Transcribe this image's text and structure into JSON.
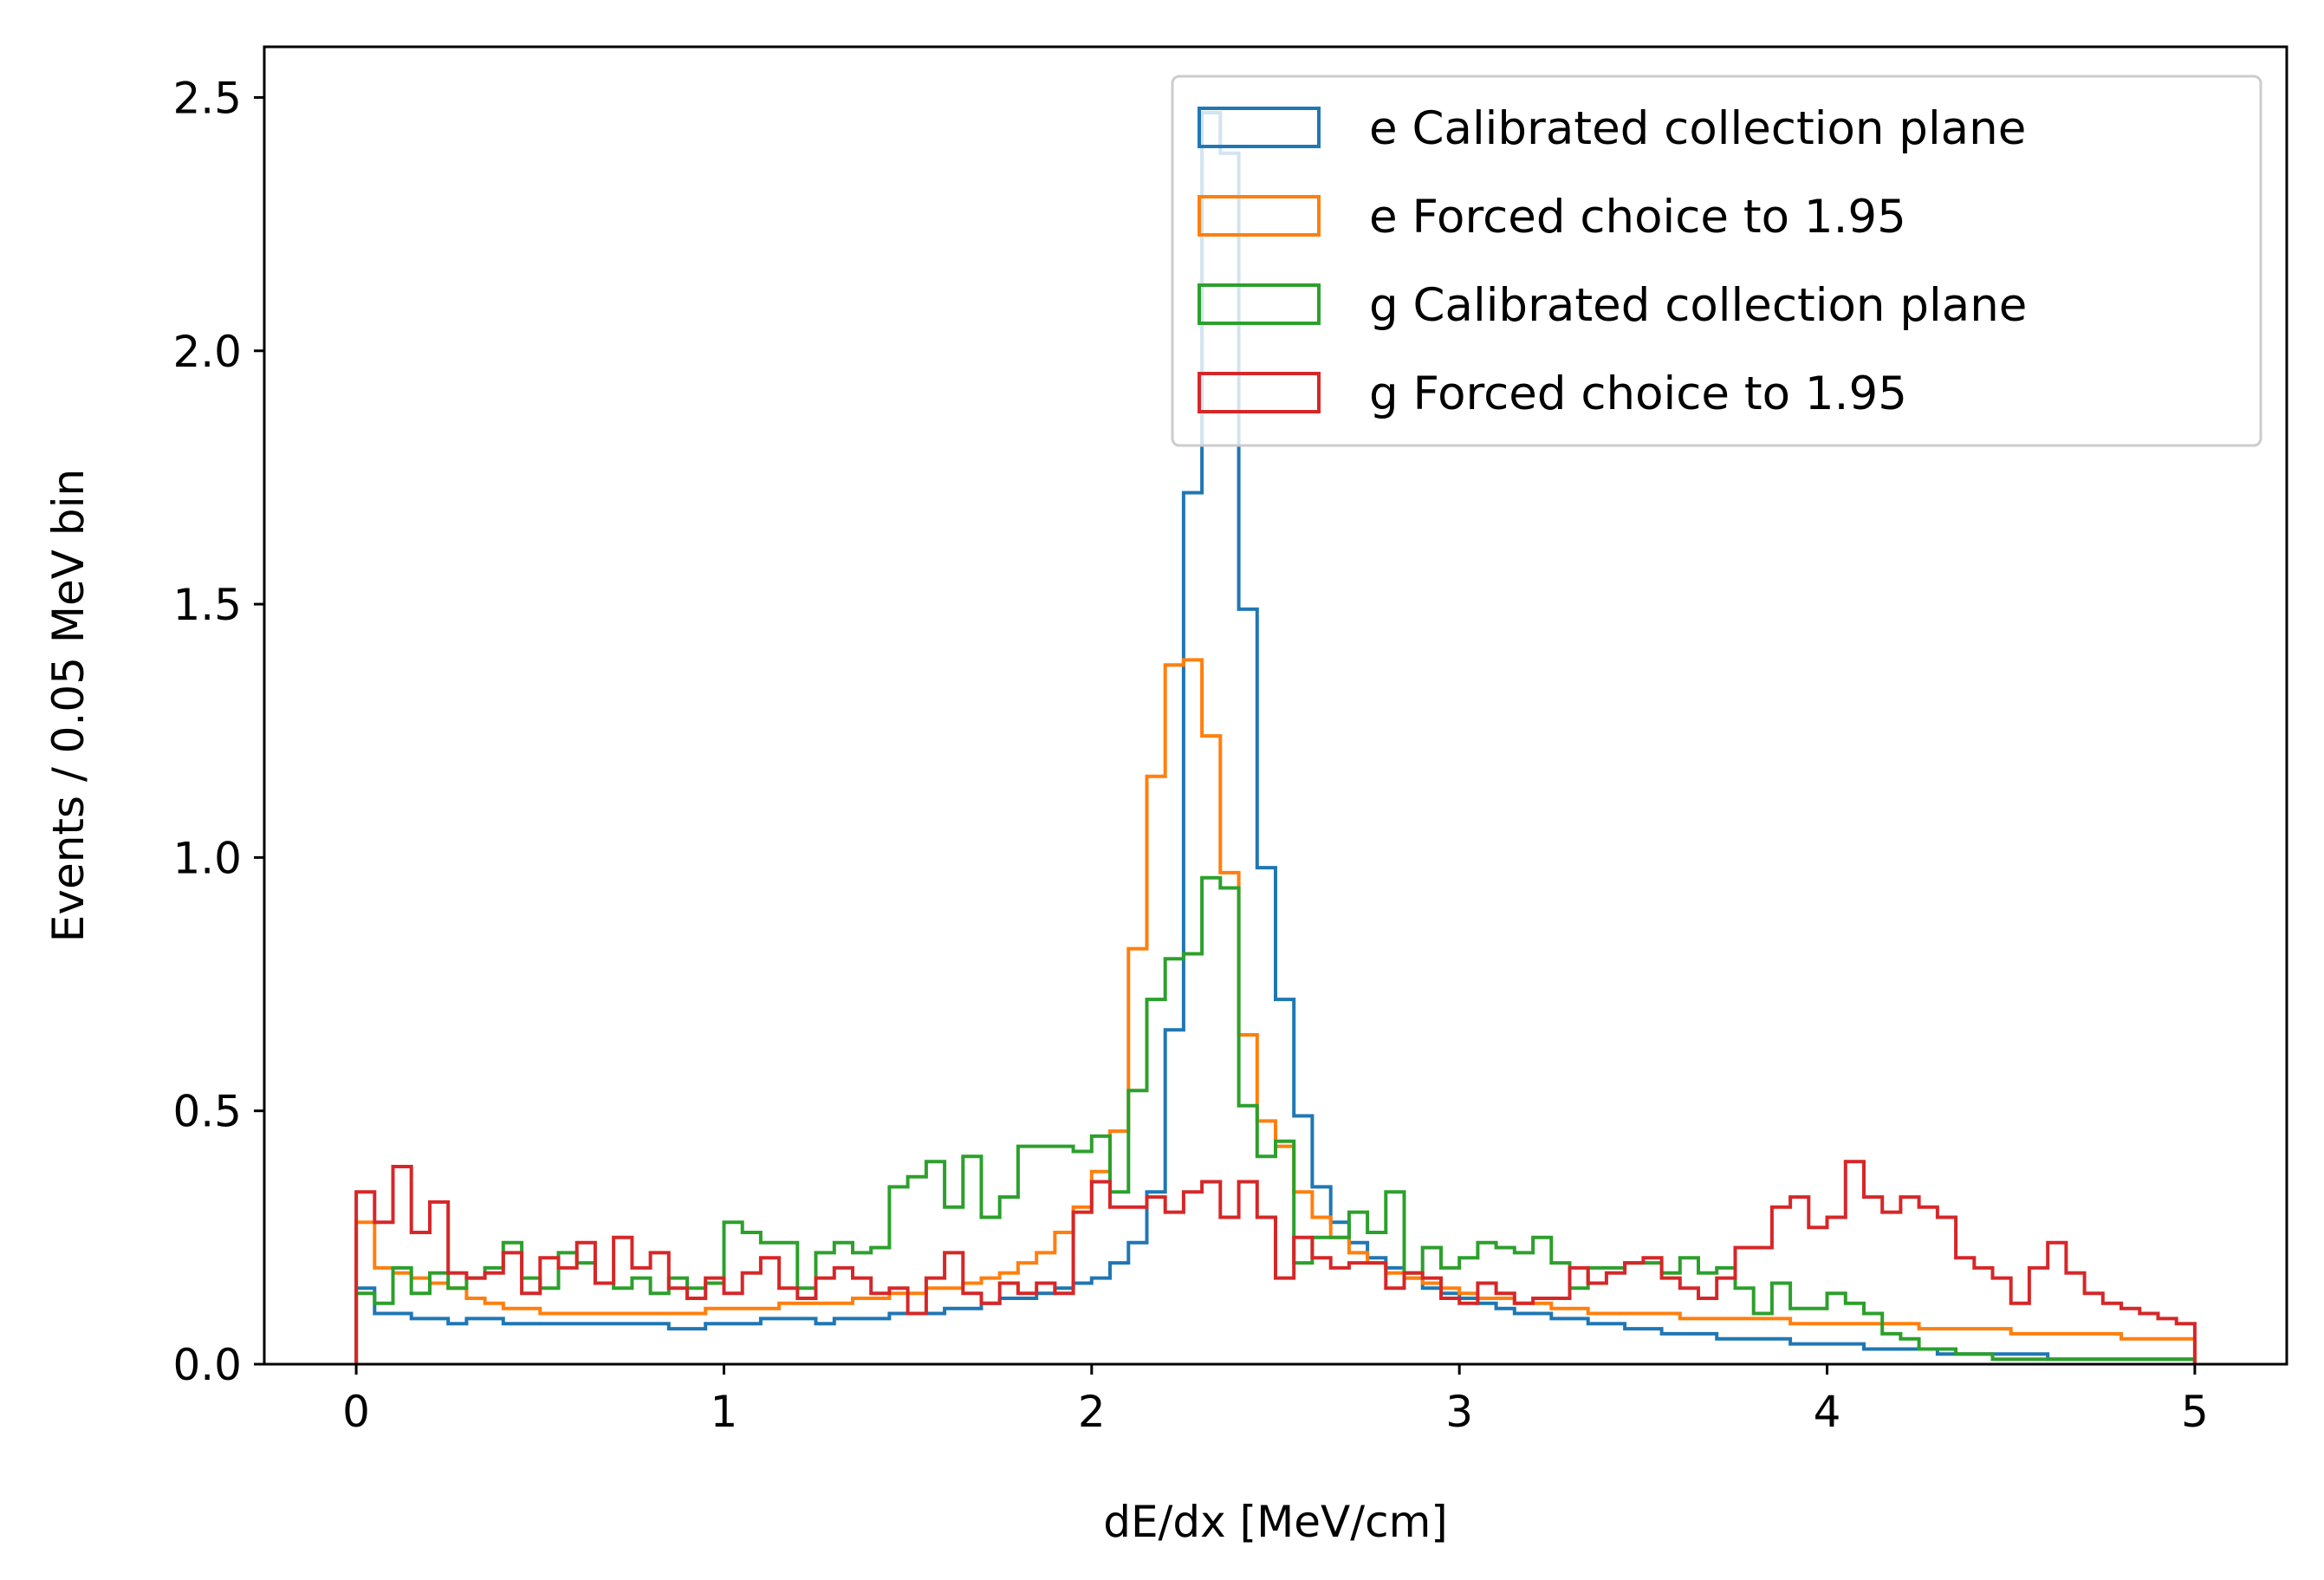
{
  "chart_data": {
    "type": "histogram-step",
    "xlabel": "dE/dx [MeV/cm]",
    "ylabel": "Events / 0.05 MeV bin",
    "xlim": [
      -0.25,
      5.25
    ],
    "ylim": [
      0,
      2.6
    ],
    "xticks": [
      0,
      1,
      2,
      3,
      4,
      5
    ],
    "xtick_labels": [
      "0",
      "1",
      "2",
      "3",
      "4",
      "5"
    ],
    "yticks": [
      0,
      0.5,
      1.0,
      1.5,
      2.0,
      2.5
    ],
    "ytick_labels": [
      "0.0",
      "0.5",
      "1.0",
      "1.5",
      "2.0",
      "2.5"
    ],
    "bin_start": 0,
    "bin_width": 0.05,
    "grid": false,
    "legend_position": "top-right",
    "series": [
      {
        "name": "e Calibrated collection plane",
        "color": "#1f77b4",
        "values": [
          0.15,
          0.1,
          0.1,
          0.09,
          0.09,
          0.08,
          0.09,
          0.09,
          0.08,
          0.08,
          0.08,
          0.08,
          0.08,
          0.08,
          0.08,
          0.08,
          0.08,
          0.07,
          0.07,
          0.08,
          0.08,
          0.08,
          0.09,
          0.09,
          0.09,
          0.08,
          0.09,
          0.09,
          0.09,
          0.1,
          0.1,
          0.1,
          0.11,
          0.11,
          0.12,
          0.13,
          0.13,
          0.14,
          0.15,
          0.16,
          0.17,
          0.2,
          0.24,
          0.34,
          0.66,
          1.72,
          2.47,
          2.39,
          1.49,
          0.98,
          0.72,
          0.49,
          0.35,
          0.28,
          0.24,
          0.21,
          0.19,
          0.17,
          0.15,
          0.14,
          0.13,
          0.12,
          0.11,
          0.1,
          0.1,
          0.09,
          0.09,
          0.08,
          0.08,
          0.07,
          0.07,
          0.06,
          0.06,
          0.06,
          0.05,
          0.05,
          0.05,
          0.05,
          0.04,
          0.04,
          0.04,
          0.04,
          0.03,
          0.03,
          0.03,
          0.03,
          0.02,
          0.02,
          0.02,
          0.02,
          0.02,
          0.02,
          0.01,
          0.01,
          0.01,
          0.01,
          0.01,
          0.01,
          0.01,
          0.01
        ]
      },
      {
        "name": "e Forced choice to 1.95",
        "color": "#ff7f0e",
        "values": [
          0.28,
          0.19,
          0.18,
          0.17,
          0.16,
          0.15,
          0.13,
          0.12,
          0.11,
          0.11,
          0.1,
          0.1,
          0.1,
          0.1,
          0.1,
          0.1,
          0.1,
          0.1,
          0.1,
          0.11,
          0.11,
          0.11,
          0.11,
          0.12,
          0.12,
          0.12,
          0.12,
          0.13,
          0.13,
          0.14,
          0.14,
          0.15,
          0.15,
          0.16,
          0.17,
          0.18,
          0.2,
          0.22,
          0.26,
          0.31,
          0.38,
          0.46,
          0.82,
          1.16,
          1.38,
          1.39,
          1.24,
          0.97,
          0.65,
          0.48,
          0.43,
          0.34,
          0.29,
          0.25,
          0.22,
          0.2,
          0.18,
          0.17,
          0.16,
          0.15,
          0.14,
          0.13,
          0.13,
          0.12,
          0.12,
          0.11,
          0.11,
          0.1,
          0.1,
          0.1,
          0.1,
          0.1,
          0.09,
          0.09,
          0.09,
          0.09,
          0.09,
          0.09,
          0.08,
          0.08,
          0.08,
          0.08,
          0.08,
          0.08,
          0.08,
          0.07,
          0.07,
          0.07,
          0.07,
          0.07,
          0.06,
          0.06,
          0.06,
          0.06,
          0.06,
          0.06,
          0.05,
          0.05,
          0.05,
          0.05
        ]
      },
      {
        "name": "g Calibrated collection plane",
        "color": "#2ca02c",
        "values": [
          0.14,
          0.12,
          0.19,
          0.14,
          0.18,
          0.15,
          0.17,
          0.19,
          0.24,
          0.17,
          0.15,
          0.22,
          0.2,
          0.16,
          0.15,
          0.17,
          0.14,
          0.17,
          0.15,
          0.16,
          0.28,
          0.26,
          0.24,
          0.24,
          0.15,
          0.22,
          0.24,
          0.22,
          0.23,
          0.35,
          0.37,
          0.4,
          0.31,
          0.41,
          0.29,
          0.33,
          0.43,
          0.43,
          0.43,
          0.42,
          0.45,
          0.34,
          0.54,
          0.72,
          0.8,
          0.81,
          0.96,
          0.94,
          0.51,
          0.41,
          0.44,
          0.2,
          0.25,
          0.25,
          0.3,
          0.26,
          0.34,
          0.18,
          0.23,
          0.19,
          0.21,
          0.24,
          0.23,
          0.22,
          0.25,
          0.2,
          0.15,
          0.19,
          0.19,
          0.2,
          0.2,
          0.18,
          0.21,
          0.18,
          0.19,
          0.15,
          0.1,
          0.16,
          0.11,
          0.11,
          0.14,
          0.12,
          0.1,
          0.06,
          0.05,
          0.03,
          0.03,
          0.02,
          0.02,
          0.01,
          0.01,
          0.01,
          0.01,
          0.01,
          0.01,
          0.01,
          0.01,
          0.01,
          0.01,
          0.01
        ]
      },
      {
        "name": "g Forced choice to 1.95",
        "color": "#d62728",
        "values": [
          0.34,
          0.28,
          0.39,
          0.26,
          0.32,
          0.18,
          0.17,
          0.18,
          0.22,
          0.14,
          0.21,
          0.19,
          0.24,
          0.16,
          0.25,
          0.19,
          0.22,
          0.15,
          0.13,
          0.17,
          0.14,
          0.18,
          0.21,
          0.15,
          0.13,
          0.17,
          0.19,
          0.17,
          0.14,
          0.15,
          0.1,
          0.17,
          0.22,
          0.14,
          0.12,
          0.16,
          0.14,
          0.16,
          0.14,
          0.3,
          0.36,
          0.31,
          0.31,
          0.33,
          0.3,
          0.34,
          0.36,
          0.29,
          0.36,
          0.29,
          0.17,
          0.25,
          0.21,
          0.19,
          0.2,
          0.2,
          0.15,
          0.18,
          0.17,
          0.13,
          0.12,
          0.16,
          0.14,
          0.12,
          0.13,
          0.13,
          0.19,
          0.16,
          0.18,
          0.2,
          0.21,
          0.17,
          0.15,
          0.13,
          0.17,
          0.23,
          0.23,
          0.31,
          0.33,
          0.27,
          0.29,
          0.4,
          0.33,
          0.3,
          0.33,
          0.31,
          0.29,
          0.21,
          0.19,
          0.17,
          0.12,
          0.19,
          0.24,
          0.18,
          0.14,
          0.12,
          0.11,
          0.1,
          0.09,
          0.08
        ]
      }
    ]
  }
}
